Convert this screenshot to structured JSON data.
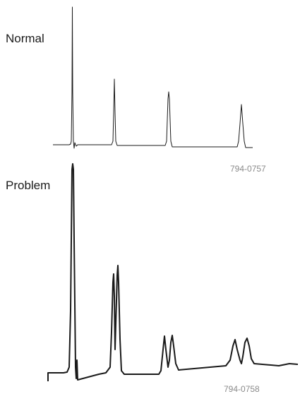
{
  "panels": [
    {
      "label": "Normal",
      "figure_code": "794-0757"
    },
    {
      "label": "Problem",
      "figure_code": "794-0758"
    }
  ],
  "colors": {
    "trace": "#1a1a1a",
    "figure_code_text": "#8a8a8a"
  }
}
